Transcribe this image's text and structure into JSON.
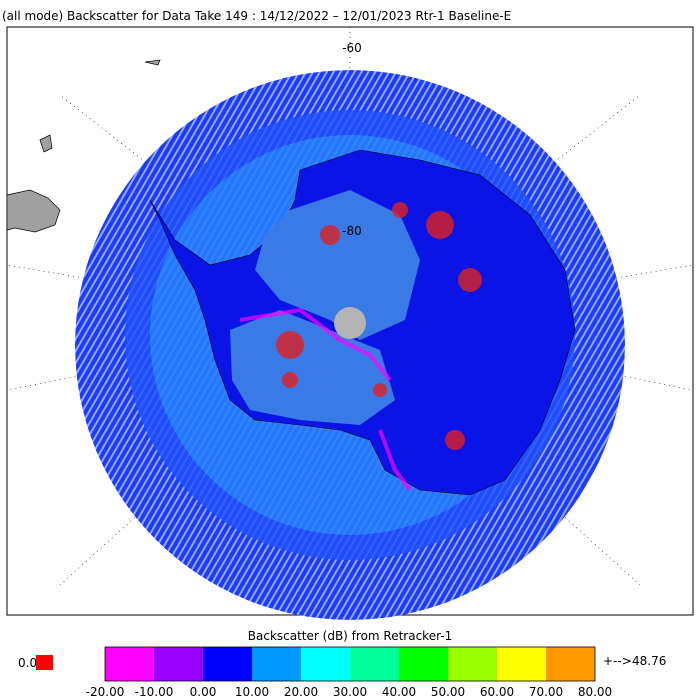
{
  "header": {
    "title": "(all mode) Backscatter for Data Take 149 : 14/12/2022 – 12/01/2023 Rtr-1 Baseline-E"
  },
  "map": {
    "lat_labels": [
      "-60",
      "-80"
    ]
  },
  "colorbar": {
    "title": "Backscatter (dB) from Retracker-1",
    "ticks": [
      "-20.00",
      "-10.00",
      "0.00",
      "10.00",
      "20.00",
      "30.00",
      "40.00",
      "50.00",
      "60.00",
      "70.00",
      "80.00"
    ],
    "colors": [
      "#ff00ff",
      "#9900ff",
      "#0000ff",
      "#0099ff",
      "#00ffff",
      "#00ff99",
      "#00ff00",
      "#99ff00",
      "#ffff00",
      "#ff9900"
    ],
    "under_label": "0.0",
    "under_color": "#ff0000",
    "over_arrow": "+-->",
    "over_label": "48.76",
    "over_color": "#ff9900"
  }
}
